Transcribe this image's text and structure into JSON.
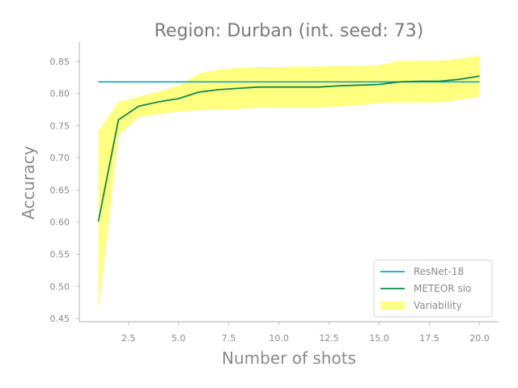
{
  "chart_data": {
    "type": "line",
    "title": "Region: Durban (int. seed: 73)",
    "xlabel": "Number of shots",
    "ylabel": "Accuracy",
    "xlim": [
      0.05,
      20.95
    ],
    "ylim": [
      0.445,
      0.88
    ],
    "xticks": [
      2.5,
      5.0,
      7.5,
      10.0,
      12.5,
      15.0,
      17.5,
      20.0
    ],
    "xtick_labels": [
      "2.5",
      "5.0",
      "7.5",
      "10.0",
      "12.5",
      "15.0",
      "17.5",
      "20.0"
    ],
    "yticks": [
      0.45,
      0.5,
      0.55,
      0.6,
      0.65,
      0.7,
      0.75,
      0.8,
      0.85
    ],
    "ytick_labels": [
      "0.45",
      "0.50",
      "0.55",
      "0.60",
      "0.65",
      "0.70",
      "0.75",
      "0.80",
      "0.85"
    ],
    "grid": false,
    "legend_position": "lower-right",
    "x": [
      1,
      2,
      3,
      4,
      5,
      6,
      7,
      8,
      9,
      10,
      11,
      12,
      13,
      14,
      15,
      16,
      17,
      18,
      19,
      20
    ],
    "series": [
      {
        "name": "ResNet-18",
        "kind": "hline",
        "color": "#1a9fc4",
        "x_range": [
          1,
          20
        ],
        "value": 0.818
      },
      {
        "name": "METEOR sio",
        "kind": "line",
        "color": "#0f8a4a",
        "values": [
          0.601,
          0.759,
          0.78,
          0.787,
          0.792,
          0.802,
          0.806,
          0.808,
          0.81,
          0.81,
          0.81,
          0.81,
          0.812,
          0.813,
          0.814,
          0.818,
          0.819,
          0.819,
          0.822,
          0.827
        ]
      },
      {
        "name": "Variability",
        "kind": "band",
        "color": "#ffff80",
        "lower": [
          0.463,
          0.735,
          0.763,
          0.768,
          0.772,
          0.774,
          0.775,
          0.776,
          0.778,
          0.778,
          0.778,
          0.778,
          0.78,
          0.782,
          0.785,
          0.786,
          0.786,
          0.786,
          0.79,
          0.795
        ],
        "upper": [
          0.742,
          0.787,
          0.795,
          0.803,
          0.812,
          0.831,
          0.837,
          0.84,
          0.841,
          0.841,
          0.842,
          0.842,
          0.843,
          0.843,
          0.844,
          0.851,
          0.851,
          0.851,
          0.854,
          0.859
        ]
      }
    ]
  }
}
